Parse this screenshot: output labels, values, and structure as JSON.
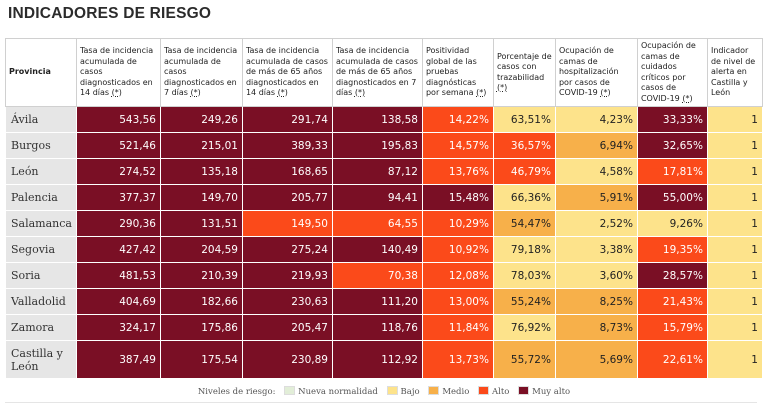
{
  "title": "INDICADORES DE RIESGO",
  "colors": {
    "nueva_normalidad": "#e2eed8",
    "bajo": "#fde38b",
    "medio": "#f7b04a",
    "alto": "#fb4a1a",
    "muy_alto": "#7a0f25"
  },
  "headers": [
    "Provincia",
    "Tasa de incidencia acumulada de casos diagnosticados en 14 días",
    "Tasa de incidencia acumulada de casos diagnosticados en 7 días",
    "Tasa de incidencia acumulada de casos de más de 65 años diagnosticados en 14 días",
    "Tasa de incidencia acumulada de casos de más de 65 años diagnosticados en 7 días",
    "Positividad global de las pruebas diagnósticas por semana",
    "Porcentaje de casos con trazabilidad",
    "Ocupación de camas de hospitalización por casos de COVID-19",
    "Ocupación de camas de cuidados críticos por casos de COVID-19",
    "Indicador de nivel de alerta en Castilla y León"
  ],
  "footnote_marker": "(*)",
  "rows": [
    {
      "provincia": "Ávila",
      "values": [
        "543,56",
        "249,26",
        "291,74",
        "138,58",
        "14,22%",
        "63,51%",
        "4,23%",
        "33,33%",
        "1"
      ],
      "levels": [
        "muy_alto",
        "muy_alto",
        "muy_alto",
        "muy_alto",
        "alto",
        "bajo",
        "bajo",
        "muy_alto",
        "bajo"
      ]
    },
    {
      "provincia": "Burgos",
      "values": [
        "521,46",
        "215,01",
        "389,33",
        "195,83",
        "14,57%",
        "36,57%",
        "6,94%",
        "32,65%",
        "1"
      ],
      "levels": [
        "muy_alto",
        "muy_alto",
        "muy_alto",
        "muy_alto",
        "alto",
        "alto",
        "medio",
        "muy_alto",
        "bajo"
      ]
    },
    {
      "provincia": "León",
      "values": [
        "274,52",
        "135,18",
        "168,65",
        "87,12",
        "13,76%",
        "46,79%",
        "4,58%",
        "17,81%",
        "1"
      ],
      "levels": [
        "muy_alto",
        "muy_alto",
        "muy_alto",
        "muy_alto",
        "alto",
        "alto",
        "bajo",
        "alto",
        "bajo"
      ]
    },
    {
      "provincia": "Palencia",
      "values": [
        "377,37",
        "149,70",
        "205,77",
        "94,41",
        "15,48%",
        "66,36%",
        "5,91%",
        "55,00%",
        "1"
      ],
      "levels": [
        "muy_alto",
        "muy_alto",
        "muy_alto",
        "muy_alto",
        "muy_alto",
        "bajo",
        "medio",
        "muy_alto",
        "bajo"
      ]
    },
    {
      "provincia": "Salamanca",
      "values": [
        "290,36",
        "131,51",
        "149,50",
        "64,55",
        "10,29%",
        "54,47%",
        "2,52%",
        "9,26%",
        "1"
      ],
      "levels": [
        "muy_alto",
        "muy_alto",
        "alto",
        "alto",
        "alto",
        "medio",
        "bajo",
        "bajo",
        "bajo"
      ]
    },
    {
      "provincia": "Segovia",
      "values": [
        "427,42",
        "204,59",
        "275,24",
        "140,49",
        "10,92%",
        "79,18%",
        "3,38%",
        "19,35%",
        "1"
      ],
      "levels": [
        "muy_alto",
        "muy_alto",
        "muy_alto",
        "muy_alto",
        "alto",
        "bajo",
        "bajo",
        "alto",
        "bajo"
      ]
    },
    {
      "provincia": "Soria",
      "values": [
        "481,53",
        "210,39",
        "219,93",
        "70,38",
        "12,08%",
        "78,03%",
        "3,60%",
        "28,57%",
        "1"
      ],
      "levels": [
        "muy_alto",
        "muy_alto",
        "muy_alto",
        "alto",
        "alto",
        "bajo",
        "bajo",
        "muy_alto",
        "bajo"
      ]
    },
    {
      "provincia": "Valladolid",
      "values": [
        "404,69",
        "182,66",
        "230,63",
        "111,20",
        "13,00%",
        "55,24%",
        "8,25%",
        "21,43%",
        "1"
      ],
      "levels": [
        "muy_alto",
        "muy_alto",
        "muy_alto",
        "muy_alto",
        "alto",
        "medio",
        "medio",
        "alto",
        "bajo"
      ]
    },
    {
      "provincia": "Zamora",
      "values": [
        "324,17",
        "175,86",
        "205,47",
        "118,76",
        "11,84%",
        "76,92%",
        "8,73%",
        "15,79%",
        "1"
      ],
      "levels": [
        "muy_alto",
        "muy_alto",
        "muy_alto",
        "muy_alto",
        "alto",
        "bajo",
        "medio",
        "alto",
        "bajo"
      ]
    },
    {
      "provincia": "Castilla y León",
      "values": [
        "387,49",
        "175,54",
        "230,89",
        "112,92",
        "13,73%",
        "55,72%",
        "5,69%",
        "22,61%",
        "1"
      ],
      "levels": [
        "muy_alto",
        "muy_alto",
        "muy_alto",
        "muy_alto",
        "alto",
        "medio",
        "medio",
        "alto",
        "bajo"
      ]
    }
  ],
  "legend": {
    "label": "Niveles de riesgo:",
    "items": [
      {
        "key": "nueva_normalidad",
        "label": "Nueva normalidad"
      },
      {
        "key": "bajo",
        "label": "Bajo"
      },
      {
        "key": "medio",
        "label": "Medio"
      },
      {
        "key": "alto",
        "label": "Alto"
      },
      {
        "key": "muy_alto",
        "label": "Muy alto"
      }
    ]
  }
}
